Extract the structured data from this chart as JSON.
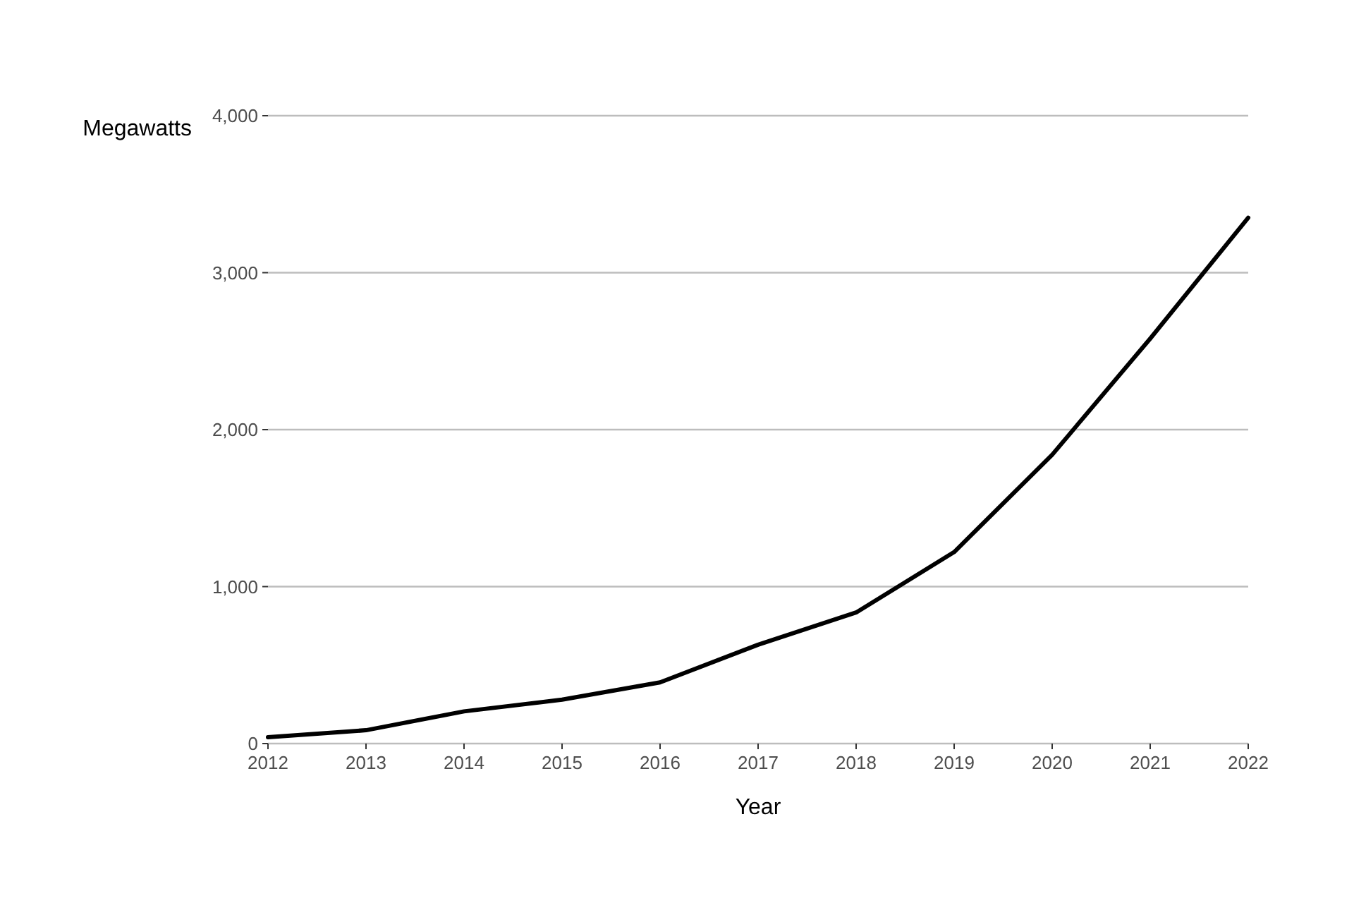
{
  "chart_data": {
    "type": "line",
    "xlabel": "Year",
    "ylabel": "Megawatts",
    "x": [
      2012,
      2013,
      2014,
      2015,
      2016,
      2017,
      2018,
      2019,
      2020,
      2021,
      2022
    ],
    "series": [
      {
        "color": "#000000",
        "values": [
          40,
          85,
          205,
          280,
          390,
          630,
          835,
          1220,
          1840,
          2580,
          3350
        ]
      }
    ],
    "xlim": [
      2012,
      2022
    ],
    "xticks": [
      2012,
      2013,
      2014,
      2015,
      2016,
      2017,
      2018,
      2019,
      2020,
      2021,
      2022
    ],
    "ylim": [
      0,
      4000
    ],
    "yticks": [
      {
        "value": 0,
        "label": "0"
      },
      {
        "value": 1000,
        "label": "1,000"
      },
      {
        "value": 2000,
        "label": "2,000"
      },
      {
        "value": 3000,
        "label": "3,000"
      },
      {
        "value": 4000,
        "label": "4,000"
      }
    ],
    "grid": "y",
    "marker": "none",
    "line_style": "solid"
  }
}
